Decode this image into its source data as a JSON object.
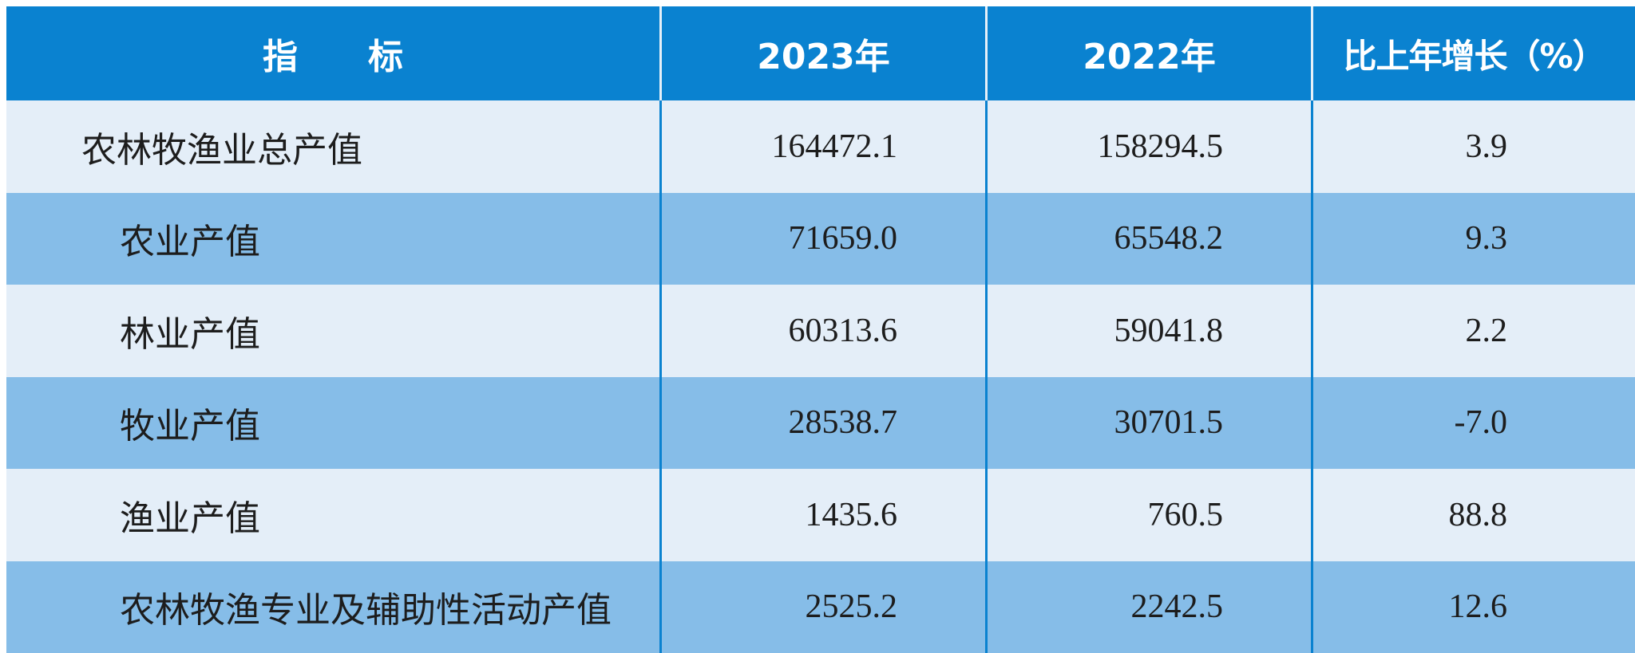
{
  "table": {
    "headers": {
      "indicator": "指　　标",
      "year2023": "2023年",
      "year2022": "2022年",
      "growth": "比上年增长（%）"
    },
    "rows": [
      {
        "name": "农林牧渔业总产值",
        "v2023": "164472.1",
        "v2022": "158294.5",
        "growth": "3.9"
      },
      {
        "name": "农业产值",
        "v2023": "71659.0",
        "v2022": "65548.2",
        "growth": "9.3"
      },
      {
        "name": "林业产值",
        "v2023": "60313.6",
        "v2022": "59041.8",
        "growth": "2.2"
      },
      {
        "name": "牧业产值",
        "v2023": "28538.7",
        "v2022": "30701.5",
        "growth": "-7.0"
      },
      {
        "name": "渔业产值",
        "v2023": "1435.6",
        "v2022": "760.5",
        "growth": "88.8"
      },
      {
        "name": "农林牧渔专业及辅助性活动产值",
        "v2023": "2525.2",
        "v2022": "2242.5",
        "growth": "12.6"
      }
    ],
    "colors": {
      "header_bg": "#0a82d0",
      "row_light": "#e4eef8",
      "row_dark": "#86bde8"
    }
  }
}
